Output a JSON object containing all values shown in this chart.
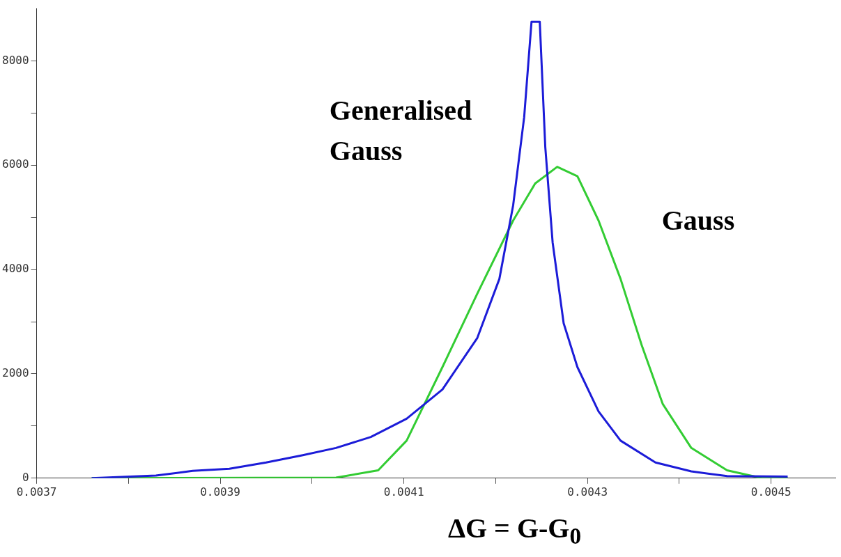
{
  "chart_data": {
    "type": "line",
    "xlabel": "ΔG = G-G$_{0}$",
    "xlim": [
      0.0037,
      0.00457
    ],
    "xticks": [
      0.0037,
      {
        "value": 0.0038,
        "label": null
      },
      0.0039,
      {
        "value": 0.004,
        "label": null
      },
      0.0041,
      {
        "value": 0.0042,
        "label": null
      },
      0.0043,
      {
        "value": 0.0044,
        "label": null
      },
      0.0045
    ],
    "ylim": [
      0,
      9000
    ],
    "yticks": [
      0,
      {
        "value": 1000,
        "label": null
      },
      2000,
      {
        "value": 3000,
        "label": null
      },
      4000,
      {
        "value": 5000,
        "label": null
      },
      6000,
      {
        "value": 7000,
        "label": null
      },
      8000
    ],
    "grid": false,
    "legend": false,
    "marker": "none",
    "line_style": "solid",
    "series": [
      {
        "name": "Generalised Gauss",
        "color": "#1c1cd8",
        "x": [
          0.00376,
          0.00383,
          0.00387,
          0.00391,
          0.00395,
          0.00399,
          0.004026,
          0.004064,
          0.004103,
          0.004142,
          0.00418,
          0.004204,
          0.004219,
          0.004231,
          0.004239,
          0.004248,
          0.004254,
          0.004262,
          0.004274,
          0.004289,
          0.004312,
          0.004336,
          0.004374,
          0.004413,
          0.004452,
          0.004518
        ],
        "values": [
          0,
          50,
          140,
          180,
          300,
          440,
          580,
          790,
          1140,
          1700,
          2690,
          3820,
          5230,
          6920,
          8750,
          8750,
          6350,
          4520,
          2970,
          2130,
          1280,
          720,
          300,
          130,
          40,
          30
        ]
      },
      {
        "name": "Gauss",
        "color": "#33cc33",
        "x": [
          0.00376,
          0.004026,
          0.004072,
          0.004103,
          0.004142,
          0.00418,
          0.004219,
          0.004243,
          0.004267,
          0.004289,
          0.004312,
          0.004336,
          0.004359,
          0.004382,
          0.004413,
          0.004452,
          0.00449,
          0.004518
        ],
        "values": [
          0,
          10,
          150,
          720,
          2130,
          3540,
          4940,
          5650,
          5970,
          5790,
          4940,
          3820,
          2550,
          1420,
          580,
          150,
          0,
          0
        ]
      }
    ]
  }
}
